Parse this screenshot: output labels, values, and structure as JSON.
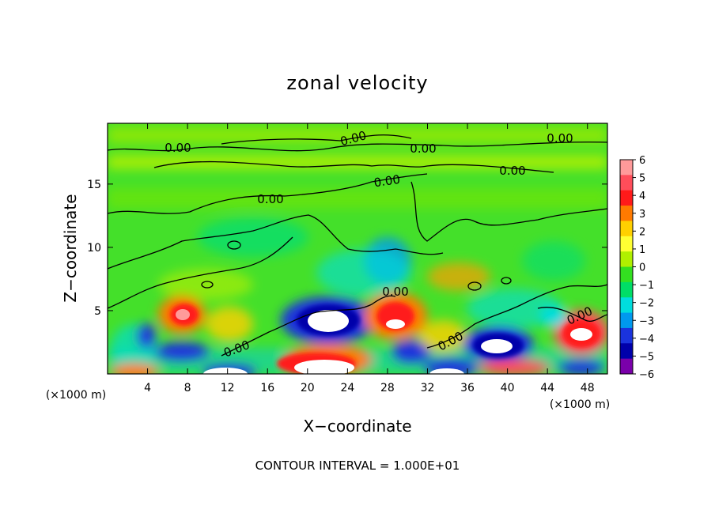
{
  "chart_data": {
    "type": "heatmap",
    "title": "zonal velocity",
    "xlabel": "X−coordinate",
    "ylabel": "Z−coordinate",
    "x_unit": "(×1000 m)",
    "y_unit": "(×1000 m)",
    "xlim": [
      0,
      50
    ],
    "ylim": [
      0,
      19.8
    ],
    "x_ticks": [
      4,
      8,
      12,
      16,
      20,
      24,
      28,
      32,
      36,
      40,
      44,
      48
    ],
    "y_ticks": [
      5,
      10,
      15
    ],
    "colorbar": {
      "ticks": [
        6,
        5,
        4,
        3,
        2,
        1,
        0,
        -1,
        -2,
        -3,
        -4,
        -5,
        -6
      ],
      "tick_labels": [
        "6",
        "5",
        "4",
        "3",
        "2",
        "1",
        "0",
        "−1",
        "−2",
        "−3",
        "−4",
        "−5",
        "−6"
      ],
      "colors": [
        "#ff9a9a",
        "#ff4d5a",
        "#ff1a1a",
        "#ff7a00",
        "#ffd000",
        "#ffff33",
        "#b0f000",
        "#33e020",
        "#00dd66",
        "#00dddd",
        "#0099ee",
        "#1a33dd",
        "#0000aa",
        "#7a00aa"
      ]
    },
    "contour_labels": [
      "0.00",
      "0.00",
      "0.00",
      "0.00",
      "0.00",
      "0.00",
      "0.00",
      "0.00",
      "0.00",
      "0.00",
      "0.00"
    ],
    "footer": "CONTOUR INTERVAL = 1.000E+01",
    "grid": false,
    "legend": "colorbar-right"
  }
}
